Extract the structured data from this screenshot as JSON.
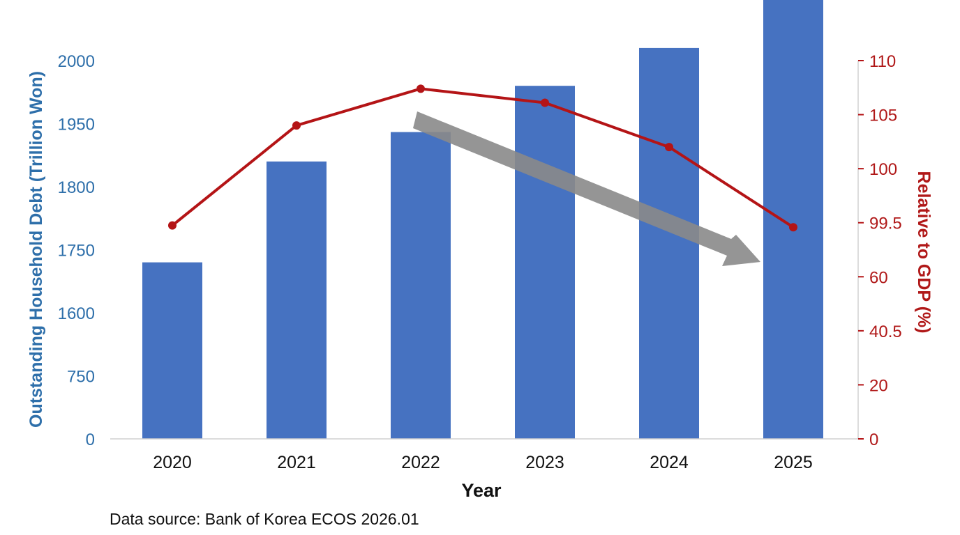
{
  "chart_data": {
    "type": "bar",
    "categories": [
      "2020",
      "2021",
      "2022",
      "2023",
      "2024",
      "2025"
    ],
    "series": [
      {
        "kind": "bar",
        "axis": "left",
        "values": [
          1720,
          1860,
          1930,
          1980,
          2010,
          2055
        ]
      },
      {
        "kind": "line",
        "axis": "right",
        "values": [
          97.5,
          104,
          107.4,
          106.1,
          102,
          96.2
        ]
      }
    ],
    "xlabel": "Year",
    "ylabel_left": "Outstanding Household Debt (Trillion Won)",
    "ylabel_right": "Relative to GDP (%)",
    "left_ticks": [
      "0",
      "750",
      "1600",
      "1750",
      "1800",
      "1950",
      "2000"
    ],
    "right_ticks": [
      "0",
      "20",
      "40.5",
      "60",
      "99.5",
      "100",
      "105",
      "110"
    ],
    "annotation": "downward-trend-arrow",
    "grid": false,
    "colors": {
      "bar": "#4672c1",
      "line": "#b41416",
      "arrow": "#8a8a8a",
      "left_axis": "#2e6faa",
      "right_axis": "#b01818"
    }
  },
  "source_text": "Data source: Bank of Korea ECOS 2026.01"
}
